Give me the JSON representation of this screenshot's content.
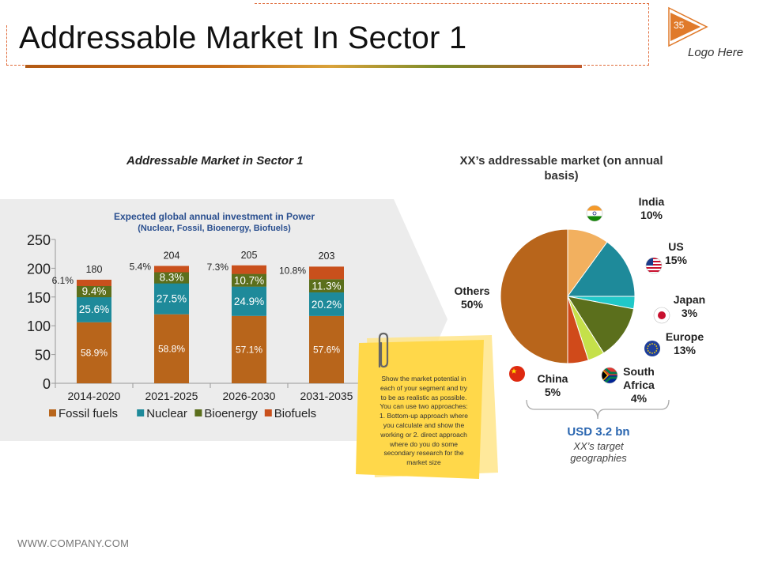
{
  "page": {
    "title": "Addressable Market In Sector 1",
    "slide_number": "35",
    "logo_text": "Logo Here",
    "footer_url": "WWW.COMPANY.COM"
  },
  "left_panel": {
    "heading": "Addressable Market in Sector 1"
  },
  "right_panel": {
    "heading_line1": "XX’s addressable market (on annual",
    "heading_line2": "basis)",
    "total_label": "USD 3.2 bn",
    "target_line1": "XX’s target",
    "target_line2": "geographies"
  },
  "note": {
    "lines": [
      "Show the market potential in",
      "each of your segment and try",
      "to be as realistic as possible.",
      "You can use two approaches:",
      "1. Bottom-up approach where",
      "you calculate and show the",
      "working or 2. direct approach",
      "where do you do some",
      "secondary research for the",
      "market size"
    ]
  },
  "colors": {
    "fossil": "#b8651b",
    "nuclear": "#1e8a9a",
    "bioenergy": "#5b6f1c",
    "biofuels": "#c9501c",
    "india": "#f2b05f",
    "us": "#1e8a9a",
    "japan": "#20c8c8",
    "europe": "#5b6f1c",
    "south_africa": "#c5e04a",
    "china": "#d04a1a",
    "others": "#b8651b",
    "panel_bg": "#ececec",
    "note_yellow": "#ffd84a",
    "accent_blue": "#2a66b0"
  },
  "chart_data": [
    {
      "type": "bar",
      "stacked": true,
      "title": "Expected global annual investment in Power",
      "subtitle": "(Nuclear, Fossil, Bioenergy, Biofuels)",
      "categories": [
        "2014-2020",
        "2021-2025",
        "2026-2030",
        "2031-2035"
      ],
      "totals": [
        180,
        204,
        205,
        203
      ],
      "series": [
        {
          "name": "Fossil fuels",
          "color_key": "fossil",
          "shares": [
            58.9,
            58.8,
            57.1,
            57.6
          ],
          "labels": [
            "58.9%",
            "58.8%",
            "57.1%",
            "57.6%"
          ]
        },
        {
          "name": "Nuclear",
          "color_key": "nuclear",
          "shares": [
            25.6,
            27.5,
            24.9,
            20.2
          ],
          "labels": [
            "25.6%",
            "27.5%",
            "24.9%",
            "20.2%"
          ]
        },
        {
          "name": "Bioenergy",
          "color_key": "bioenergy",
          "shares": [
            9.4,
            8.3,
            10.7,
            11.3
          ],
          "labels": [
            "9.4%",
            "8.3%",
            "10.7%",
            "11.3%"
          ]
        },
        {
          "name": "Biofuels",
          "color_key": "biofuels",
          "shares": [
            6.1,
            5.4,
            7.3,
            10.8
          ],
          "labels": [
            "6.1%",
            "5.4%",
            "7.3%",
            "10.8%"
          ]
        }
      ],
      "yticks": [
        0,
        50,
        100,
        150,
        200,
        250
      ],
      "ylim": [
        0,
        250
      ],
      "grid": false,
      "legend": "bottom"
    },
    {
      "type": "pie",
      "title": "XX’s addressable market (on annual basis)",
      "slices": [
        {
          "name": "India",
          "value": 10,
          "label": "10%",
          "color_key": "india"
        },
        {
          "name": "US",
          "value": 15,
          "label": "15%",
          "color_key": "us"
        },
        {
          "name": "Japan",
          "value": 3,
          "label": "3%",
          "color_key": "japan"
        },
        {
          "name": "Europe",
          "value": 13,
          "label": "13%",
          "color_key": "europe"
        },
        {
          "name": "South Africa",
          "value": 4,
          "label": "4%",
          "color_key": "south_africa"
        },
        {
          "name": "China",
          "value": 5,
          "label": "5%",
          "color_key": "china"
        },
        {
          "name": "Others",
          "value": 50,
          "label": "50%",
          "color_key": "others"
        }
      ]
    }
  ]
}
